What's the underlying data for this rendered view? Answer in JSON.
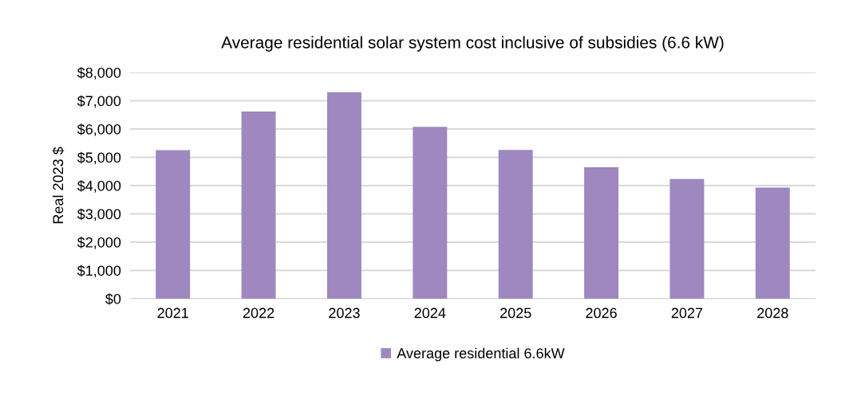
{
  "chart_data": {
    "type": "bar",
    "title": "Average residential solar system cost inclusive of subsidies (6.6 kW)",
    "ylabel": "Real 2023 $",
    "categories": [
      "2021",
      "2022",
      "2023",
      "2024",
      "2025",
      "2026",
      "2027",
      "2028"
    ],
    "series": [
      {
        "name": "Average residential 6.6kW",
        "color": "#9e88bf",
        "values": [
          5250,
          6620,
          7300,
          6080,
          5260,
          4650,
          4230,
          3930
        ]
      }
    ],
    "ylim": [
      0,
      8000
    ],
    "yticks": [
      {
        "value": 0,
        "label": "$0"
      },
      {
        "value": 1000,
        "label": "$1,000"
      },
      {
        "value": 2000,
        "label": "$2,000"
      },
      {
        "value": 3000,
        "label": "$3,000"
      },
      {
        "value": 4000,
        "label": "$4,000"
      },
      {
        "value": 5000,
        "label": "$5,000"
      },
      {
        "value": 6000,
        "label": "$6,000"
      },
      {
        "value": 7000,
        "label": "$7,000"
      },
      {
        "value": 8000,
        "label": "$8,000"
      }
    ],
    "grid": "y",
    "legend": "bottom"
  }
}
